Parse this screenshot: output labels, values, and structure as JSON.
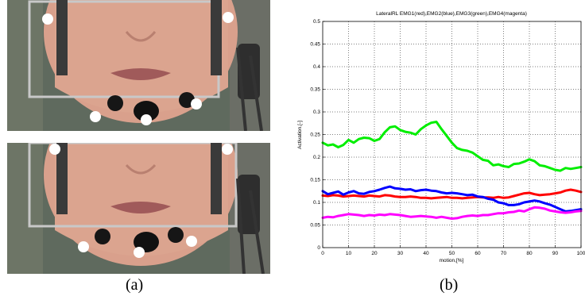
{
  "figure": {
    "caption_a": "(a)",
    "caption_b": "(b)"
  },
  "photos": [
    {
      "name": "face-photo-top"
    },
    {
      "name": "face-photo-bottom"
    }
  ],
  "colors": {
    "red": "#ff0000",
    "blue": "#0000ff",
    "green": "#00ee00",
    "magenta": "#ff00ff",
    "skin": "#d9a08c",
    "background": "#5f6a5e"
  },
  "chart_data": {
    "type": "line",
    "title": "LateralRL EMG1(red),EMG2(blue),EMG3(green),EMG4(magenta)",
    "xlabel": "motion,[%]",
    "ylabel": "Activation,[-]",
    "xlim": [
      0,
      100
    ],
    "ylim": [
      0,
      0.5
    ],
    "xticks": [
      "0",
      "10",
      "20",
      "30",
      "40",
      "50",
      "60",
      "70",
      "80",
      "90",
      "100"
    ],
    "yticks": [
      "0",
      "0.05",
      "0.1",
      "0.15",
      "0.2",
      "0.25",
      "0.3",
      "0.35",
      "0.4",
      "0.45",
      "0.5"
    ],
    "grid": true,
    "x": [
      0,
      2,
      4,
      6,
      8,
      10,
      12,
      14,
      16,
      18,
      20,
      22,
      24,
      26,
      28,
      30,
      32,
      34,
      36,
      38,
      40,
      42,
      44,
      46,
      48,
      50,
      52,
      54,
      56,
      58,
      60,
      62,
      64,
      66,
      68,
      70,
      72,
      74,
      76,
      78,
      80,
      82,
      84,
      86,
      88,
      90,
      92,
      94,
      96,
      98,
      100
    ],
    "series": [
      {
        "color": "red",
        "values": [
          0.115,
          0.114,
          0.116,
          0.115,
          0.113,
          0.114,
          0.115,
          0.114,
          0.113,
          0.115,
          0.114,
          0.113,
          0.116,
          0.115,
          0.113,
          0.112,
          0.112,
          0.113,
          0.112,
          0.11,
          0.11,
          0.109,
          0.11,
          0.111,
          0.112,
          0.11,
          0.11,
          0.109,
          0.11,
          0.111,
          0.112,
          0.111,
          0.111,
          0.11,
          0.112,
          0.11,
          0.111,
          0.114,
          0.117,
          0.12,
          0.121,
          0.118,
          0.116,
          0.117,
          0.118,
          0.12,
          0.122,
          0.126,
          0.128,
          0.126,
          0.123
        ]
      },
      {
        "color": "blue",
        "values": [
          0.125,
          0.118,
          0.121,
          0.124,
          0.117,
          0.122,
          0.125,
          0.12,
          0.119,
          0.123,
          0.125,
          0.128,
          0.132,
          0.135,
          0.131,
          0.13,
          0.128,
          0.129,
          0.125,
          0.127,
          0.128,
          0.126,
          0.125,
          0.122,
          0.12,
          0.121,
          0.12,
          0.118,
          0.116,
          0.117,
          0.113,
          0.112,
          0.108,
          0.106,
          0.1,
          0.098,
          0.094,
          0.094,
          0.096,
          0.1,
          0.102,
          0.104,
          0.102,
          0.098,
          0.095,
          0.09,
          0.085,
          0.08,
          0.081,
          0.083,
          0.085
        ]
      },
      {
        "color": "green",
        "values": [
          0.232,
          0.226,
          0.228,
          0.222,
          0.227,
          0.238,
          0.232,
          0.24,
          0.243,
          0.242,
          0.236,
          0.24,
          0.255,
          0.266,
          0.268,
          0.26,
          0.256,
          0.254,
          0.25,
          0.262,
          0.27,
          0.276,
          0.278,
          0.262,
          0.247,
          0.232,
          0.22,
          0.216,
          0.214,
          0.21,
          0.202,
          0.194,
          0.192,
          0.182,
          0.184,
          0.18,
          0.178,
          0.185,
          0.186,
          0.19,
          0.195,
          0.191,
          0.182,
          0.18,
          0.176,
          0.172,
          0.17,
          0.176,
          0.174,
          0.176,
          0.178
        ]
      },
      {
        "color": "magenta",
        "values": [
          0.066,
          0.068,
          0.067,
          0.07,
          0.072,
          0.074,
          0.073,
          0.072,
          0.07,
          0.072,
          0.071,
          0.073,
          0.072,
          0.074,
          0.073,
          0.072,
          0.07,
          0.068,
          0.069,
          0.07,
          0.069,
          0.068,
          0.066,
          0.068,
          0.066,
          0.064,
          0.065,
          0.068,
          0.07,
          0.071,
          0.07,
          0.072,
          0.072,
          0.074,
          0.076,
          0.076,
          0.078,
          0.079,
          0.082,
          0.08,
          0.085,
          0.089,
          0.088,
          0.086,
          0.082,
          0.08,
          0.078,
          0.077,
          0.078,
          0.08,
          0.081
        ]
      }
    ]
  }
}
